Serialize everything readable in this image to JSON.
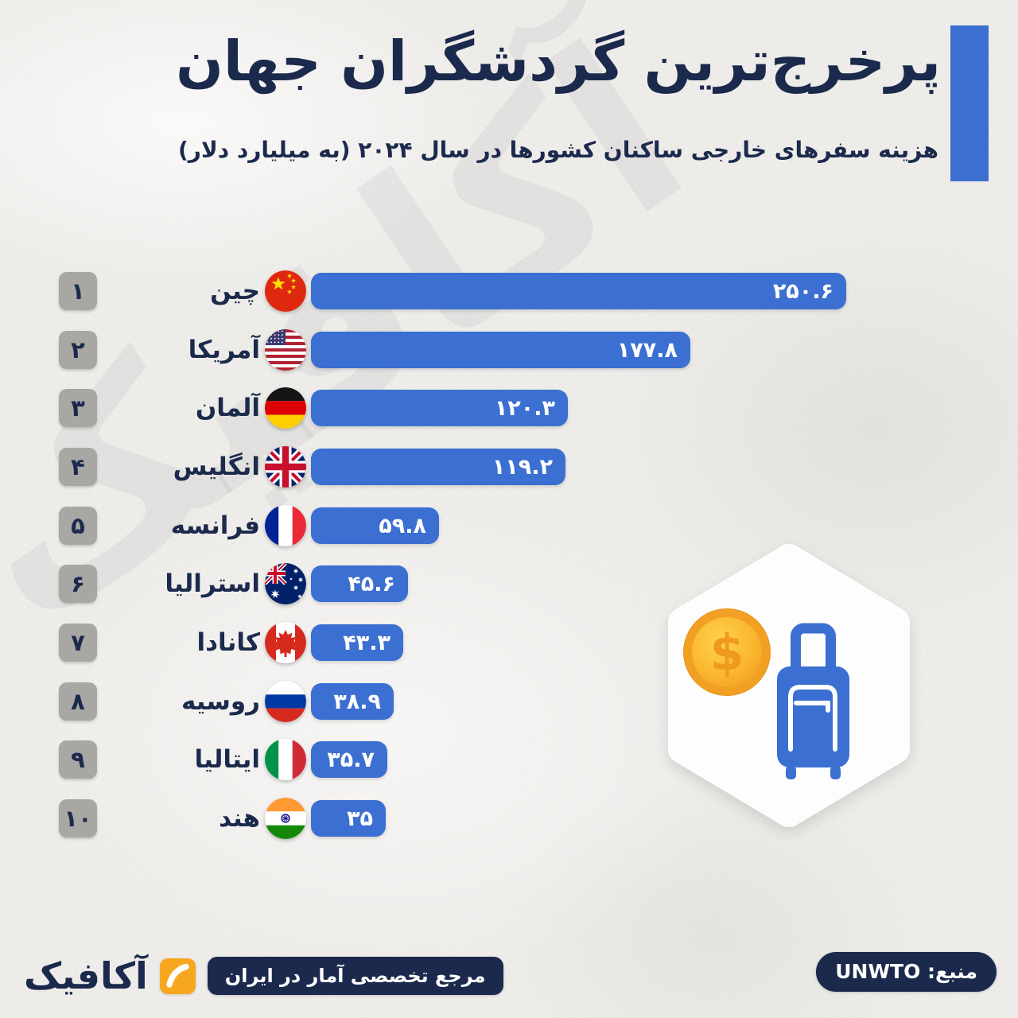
{
  "header": {
    "title": "پرخرج‌ترین گردشگران جهان",
    "subtitle": "هزینه سفرهای خارجی ساکنان کشورها در سال ۲۰۲۴ (به میلیارد دلار)"
  },
  "watermark_text": "آکافیک",
  "chart_data": {
    "type": "bar",
    "orientation": "horizontal",
    "title": "پرخرج‌ترین گردشگران جهان",
    "subtitle": "هزینه سفرهای خارجی ساکنان کشورها در سال ۲۰۲۴ (به میلیارد دلار)",
    "unit": "میلیارد دلار",
    "year_label": "۲۰۲۴",
    "xlim": [
      0,
      250.6
    ],
    "grid": false,
    "legend": false,
    "categories": [
      "چین",
      "آمریکا",
      "آلمان",
      "انگلیس",
      "فرانسه",
      "استرالیا",
      "کانادا",
      "روسیه",
      "ایتالیا",
      "هند"
    ],
    "values": [
      250.6,
      177.8,
      120.3,
      119.2,
      59.8,
      45.6,
      43.3,
      38.9,
      35.7,
      35
    ],
    "rows": [
      {
        "rank": 1,
        "rank_fa": "۱",
        "country_fa": "چین",
        "flag": "china",
        "value": 250.6,
        "value_fa": "۲۵۰.۶"
      },
      {
        "rank": 2,
        "rank_fa": "۲",
        "country_fa": "آمریکا",
        "flag": "usa",
        "value": 177.8,
        "value_fa": "۱۷۷.۸"
      },
      {
        "rank": 3,
        "rank_fa": "۳",
        "country_fa": "آلمان",
        "flag": "germany",
        "value": 120.3,
        "value_fa": "۱۲۰.۳"
      },
      {
        "rank": 4,
        "rank_fa": "۴",
        "country_fa": "انگلیس",
        "flag": "uk",
        "value": 119.2,
        "value_fa": "۱۱۹.۲"
      },
      {
        "rank": 5,
        "rank_fa": "۵",
        "country_fa": "فرانسه",
        "flag": "france",
        "value": 59.8,
        "value_fa": "۵۹.۸"
      },
      {
        "rank": 6,
        "rank_fa": "۶",
        "country_fa": "استرالیا",
        "flag": "australia",
        "value": 45.6,
        "value_fa": "۴۵.۶"
      },
      {
        "rank": 7,
        "rank_fa": "۷",
        "country_fa": "کانادا",
        "flag": "canada",
        "value": 43.3,
        "value_fa": "۴۳.۳"
      },
      {
        "rank": 8,
        "rank_fa": "۸",
        "country_fa": "روسیه",
        "flag": "russia",
        "value": 38.9,
        "value_fa": "۳۸.۹"
      },
      {
        "rank": 9,
        "rank_fa": "۹",
        "country_fa": "ایتالیا",
        "flag": "italy",
        "value": 35.7,
        "value_fa": "۳۵.۷"
      },
      {
        "rank": 10,
        "rank_fa": "۱۰",
        "country_fa": "هند",
        "flag": "india",
        "value": 35,
        "value_fa": "۳۵"
      }
    ]
  },
  "footer": {
    "source_label": "منبع: UNWTO",
    "brand_name": "آکافیک",
    "brand_tagline": "مرجع تخصصی آمار در ایران"
  },
  "colors": {
    "bar_blue": "#3b6fd1",
    "navy": "#1b2a4c",
    "badge_gray": "#a8a7a4",
    "background": "#eceae7",
    "accent_orange": "#f7a71f",
    "coin_gold": "#f2a024",
    "value_text": "#ffffff"
  }
}
